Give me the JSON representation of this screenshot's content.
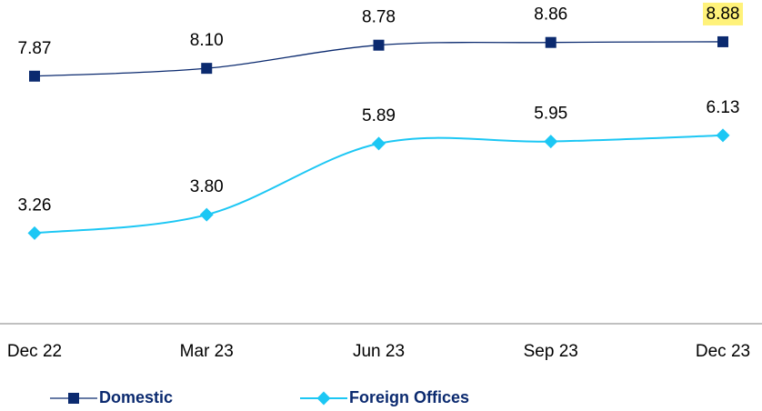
{
  "chart_data": {
    "type": "line",
    "categories": [
      "Dec 22",
      "Mar 23",
      "Jun 23",
      "Sep 23",
      "Dec 23"
    ],
    "series": [
      {
        "name": "Domestic",
        "color": "#0b2a6f",
        "marker": "square",
        "values": [
          7.87,
          8.1,
          8.78,
          8.86,
          8.88
        ],
        "value_labels": [
          "7.87",
          "8.10",
          "8.78",
          "8.86",
          "8.88"
        ]
      },
      {
        "name": "Foreign Offices",
        "color": "#1cc7f4",
        "marker": "diamond",
        "values": [
          3.26,
          3.8,
          5.89,
          5.95,
          6.13
        ],
        "value_labels": [
          "3.26",
          "3.80",
          "5.89",
          "5.95",
          "6.13"
        ]
      }
    ],
    "ylim": [
      0.6,
      10
    ],
    "legend": "bottom"
  }
}
